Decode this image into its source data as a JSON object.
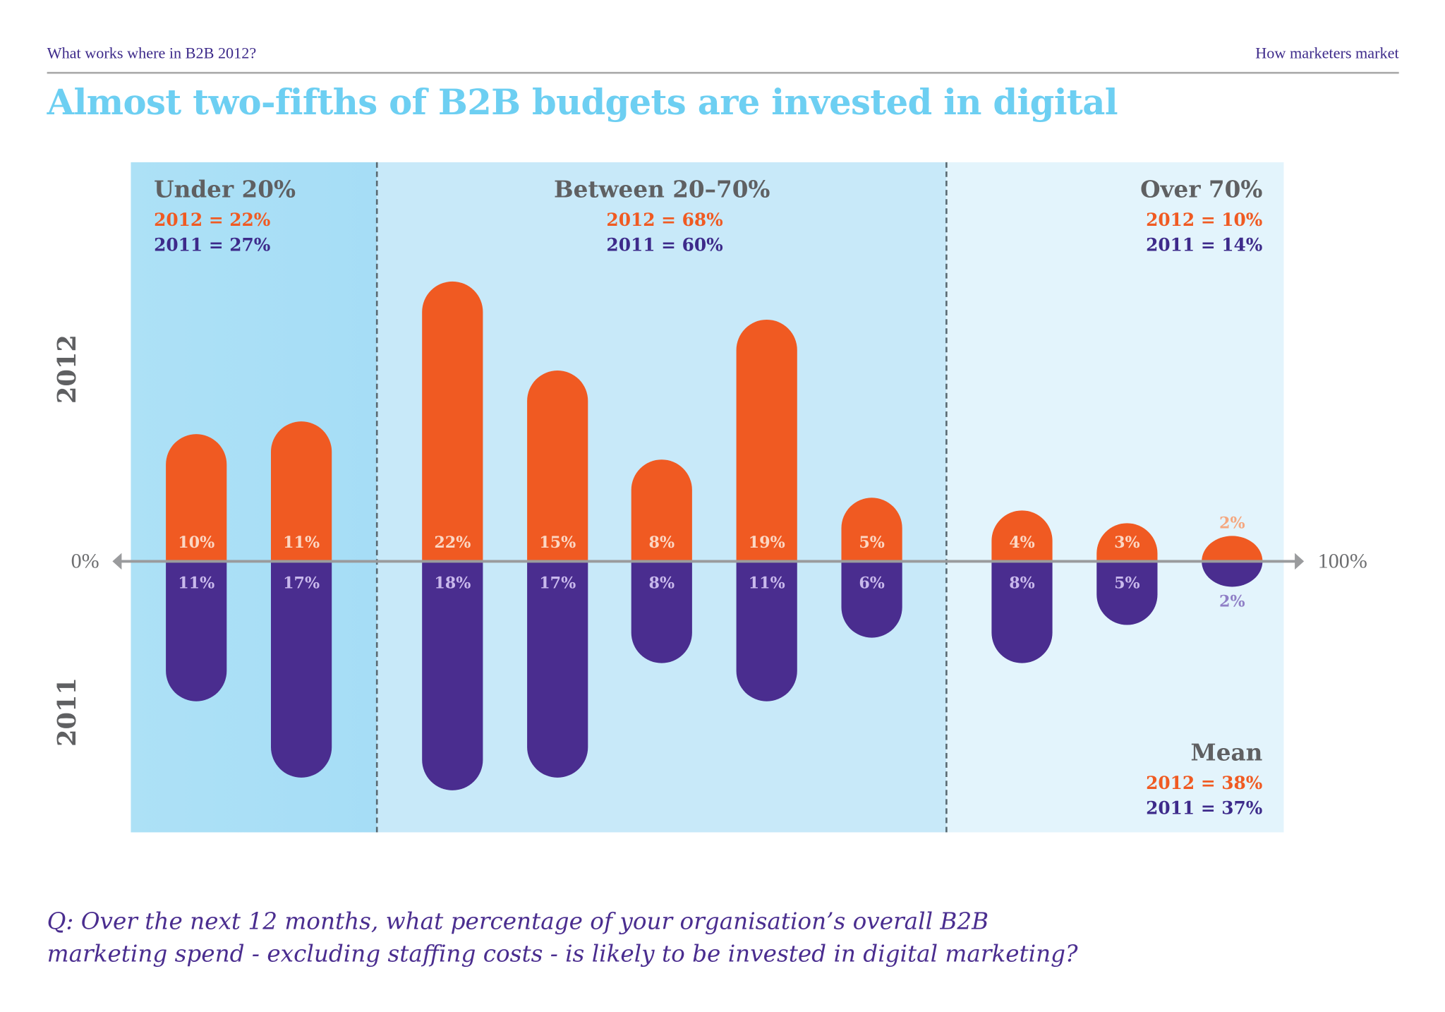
{
  "header": {
    "left": "What works where in B2B 2012?",
    "right": "How marketers market"
  },
  "title": "Almost two-fifths of B2B budgets are invested in digital",
  "groups": [
    {
      "label": "Under 20%",
      "y2012": "2012 = 22%",
      "y2011": "2011 = 27%"
    },
    {
      "label": "Between 20–70%",
      "y2012": "2012 = 68%",
      "y2011": "2011 = 60%"
    },
    {
      "label": "Over 70%",
      "y2012": "2012 = 10%",
      "y2011": "2011 = 14%"
    }
  ],
  "mean": {
    "label": "Mean",
    "y2012": "2012 = 38%",
    "y2011": "2011 = 37%"
  },
  "question": [
    "Q: Over the next 12 months, what percentage of  your organisation’s overall B2B",
    "marketing spend - excluding staffing costs - is likely to be invested in digital marketing?"
  ],
  "colors": {
    "y2012": "#f05a22",
    "y2011": "#4a2d8f",
    "title": "#6dcff2",
    "panel1": "#a8def5",
    "panel2": "#c8e9f8",
    "panel3": "#e2f3fc"
  },
  "chart_data": {
    "type": "bar",
    "orientation": "diverging",
    "xlabel_left": "0%",
    "xlabel_right": "100%",
    "ylabel_top": "2012",
    "ylabel_bottom": "2011",
    "categories_count": 10,
    "series": [
      {
        "name": "2012",
        "values": [
          10,
          11,
          22,
          15,
          8,
          19,
          5,
          4,
          3,
          2
        ],
        "labels": [
          "10%",
          "11%",
          "22%",
          "15%",
          "8%",
          "19%",
          "5%",
          "4%",
          "3%",
          "2%"
        ]
      },
      {
        "name": "2011",
        "values": [
          11,
          17,
          18,
          17,
          8,
          11,
          6,
          8,
          5,
          2
        ],
        "labels": [
          "11%",
          "17%",
          "18%",
          "17%",
          "8%",
          "11%",
          "6%",
          "8%",
          "5%",
          "2%"
        ]
      }
    ]
  }
}
